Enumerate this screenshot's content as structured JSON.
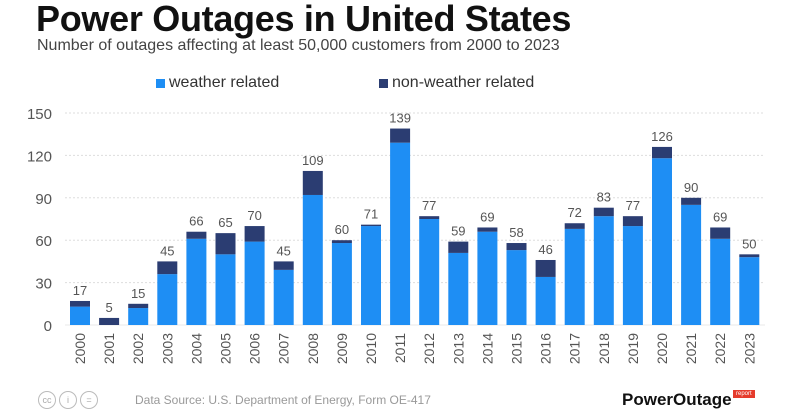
{
  "header": {
    "title": "Power Outages in United States",
    "subtitle": "Number of outages affecting at least 50,000 customers from 2000 to 2023"
  },
  "footer": {
    "source": "Data Source: U.S. Department of Energy, Form OE-417",
    "license_icons": [
      "cc-icon",
      "by-icon",
      "nd-icon"
    ],
    "license_labels": [
      "cc",
      "i",
      "="
    ],
    "logo_text": "PowerOutage",
    "logo_badge": "report"
  },
  "colors": {
    "weather": "#1e8ef4",
    "non_weather": "#2b3d72",
    "grid": "#dddddd",
    "label": "#555555"
  },
  "chart_data": {
    "type": "bar",
    "stacked": true,
    "title": "Power Outages in United States",
    "subtitle": "Number of outages affecting at least 50,000 customers from 2000 to 2023",
    "xlabel": "",
    "ylabel": "",
    "ylim": [
      0,
      150
    ],
    "yticks": [
      0,
      30,
      60,
      90,
      120,
      150
    ],
    "grid": true,
    "legend_position": "top-center",
    "categories": [
      "2000",
      "2001",
      "2002",
      "2003",
      "2004",
      "2005",
      "2006",
      "2007",
      "2008",
      "2009",
      "2010",
      "2011",
      "2012",
      "2013",
      "2014",
      "2015",
      "2016",
      "2017",
      "2018",
      "2019",
      "2020",
      "2021",
      "2022",
      "2023"
    ],
    "series": [
      {
        "name": "weather related",
        "values": [
          13,
          0,
          12,
          36,
          61,
          50,
          59,
          39,
          92,
          58,
          70,
          129,
          75,
          51,
          66,
          53,
          34,
          68,
          77,
          70,
          118,
          85,
          61,
          48
        ]
      },
      {
        "name": "non-weather related",
        "values": [
          4,
          5,
          3,
          9,
          5,
          15,
          11,
          6,
          17,
          2,
          1,
          10,
          2,
          8,
          3,
          5,
          12,
          4,
          6,
          7,
          8,
          5,
          8,
          2
        ]
      }
    ],
    "totals": [
      17,
      5,
      15,
      45,
      66,
      65,
      70,
      45,
      109,
      60,
      71,
      139,
      77,
      59,
      69,
      58,
      46,
      72,
      83,
      77,
      126,
      90,
      69,
      50
    ]
  }
}
